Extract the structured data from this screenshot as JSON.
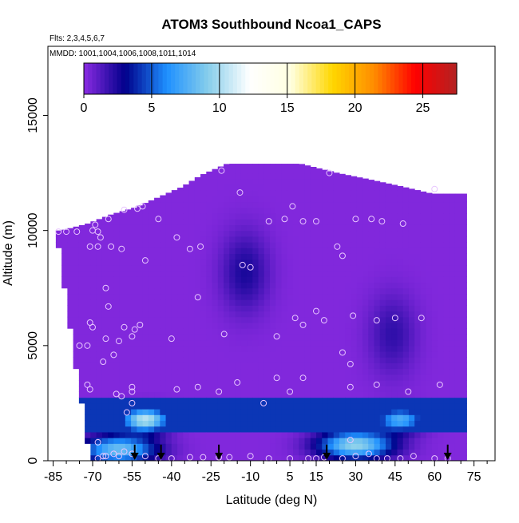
{
  "chart_data": {
    "type": "heatmap",
    "title": "ATOM3 Southbound Ncoa1_CAPS",
    "subtitle_flights": "Flts: 2,3,4,5,6,7",
    "subtitle_dates": "MMDD: 1001,1004,1006,1008,1011,1014",
    "xlabel": "Latitude (deg N)",
    "ylabel": "Altitude (m)",
    "xlim": [
      -87,
      83
    ],
    "ylim": [
      0,
      18000
    ],
    "x_ticks": [
      -85,
      -70,
      -55,
      -40,
      -25,
      -10,
      5,
      15,
      30,
      45,
      60,
      75
    ],
    "y_ticks": [
      0,
      5000,
      10000,
      15000
    ],
    "colorbar": {
      "range": [
        0,
        27.5
      ],
      "ticks": [
        0,
        5,
        10,
        15,
        20,
        25
      ],
      "colors": [
        "#8a2be2",
        "#00008b",
        "#1e90ff",
        "#87ceeb",
        "#ffffff",
        "#ffffe0",
        "#ffd700",
        "#ff8c00",
        "#ff0000",
        "#b22222"
      ],
      "segment_edges": [
        0,
        5,
        10,
        15,
        20,
        25
      ]
    },
    "field_base_value": 0.2,
    "field_features": [
      {
        "name": "upper-troposphere-enhancement",
        "lat": -12,
        "alt": 8200,
        "value": 2.5
      },
      {
        "name": "southern-boundary-layer",
        "lat": -60,
        "alt": 500,
        "value": 8.5
      },
      {
        "name": "southern-low-layer",
        "lat": -50,
        "alt": 1800,
        "value": 10.5
      },
      {
        "name": "northern-boundary-layer",
        "lat": 30,
        "alt": 700,
        "value": 9.5
      },
      {
        "name": "northern-low-layer",
        "lat": 47,
        "alt": 1800,
        "value": 7.5
      },
      {
        "name": "northern-mid-troposphere",
        "lat": 44,
        "alt": 5500,
        "value": 2.0
      }
    ],
    "sample_points": [
      [
        -83,
        9950
      ],
      [
        -80,
        9950
      ],
      [
        -76,
        9950
      ],
      [
        -70,
        10000
      ],
      [
        -69,
        10250
      ],
      [
        -68,
        9950
      ],
      [
        -67,
        9700
      ],
      [
        -71,
        9300
      ],
      [
        -68,
        9300
      ],
      [
        -64,
        10500
      ],
      [
        -63,
        9300
      ],
      [
        -59,
        9200
      ],
      [
        -58,
        10900
      ],
      [
        -53,
        10950
      ],
      [
        -51,
        11050
      ],
      [
        -50,
        8700
      ],
      [
        -45,
        10500
      ],
      [
        -38,
        9700
      ],
      [
        -33,
        9200
      ],
      [
        -29,
        9300
      ],
      [
        -21,
        12600
      ],
      [
        -14,
        11650
      ],
      [
        -13,
        8500
      ],
      [
        -10,
        8400
      ],
      [
        -3,
        10400
      ],
      [
        3,
        10500
      ],
      [
        6,
        11050
      ],
      [
        10,
        10400
      ],
      [
        15,
        10400
      ],
      [
        20,
        12500
      ],
      [
        23,
        9300
      ],
      [
        25,
        8900
      ],
      [
        30,
        10500
      ],
      [
        36,
        10500
      ],
      [
        40,
        10400
      ],
      [
        48,
        10300
      ],
      [
        60,
        11800
      ],
      [
        -65,
        7500
      ],
      [
        -64,
        6700
      ],
      [
        -71,
        6000
      ],
      [
        -70,
        5800
      ],
      [
        -65,
        5300
      ],
      [
        -66,
        4300
      ],
      [
        -62,
        4600
      ],
      [
        -60,
        5200
      ],
      [
        -58,
        5800
      ],
      [
        -54,
        5700
      ],
      [
        -52,
        5900
      ],
      [
        -55,
        5400
      ],
      [
        -75,
        5000
      ],
      [
        -72,
        5000
      ],
      [
        -40,
        5300
      ],
      [
        -30,
        7100
      ],
      [
        -20,
        5500
      ],
      [
        0,
        5400
      ],
      [
        7,
        6200
      ],
      [
        10,
        5900
      ],
      [
        15,
        6500
      ],
      [
        18,
        6100
      ],
      [
        25,
        4700
      ],
      [
        28,
        4200
      ],
      [
        29,
        6300
      ],
      [
        38,
        6100
      ],
      [
        45,
        6200
      ],
      [
        55,
        6200
      ],
      [
        -72,
        3300
      ],
      [
        -71,
        3100
      ],
      [
        -61,
        2900
      ],
      [
        -59,
        2800
      ],
      [
        -55,
        3200
      ],
      [
        -55,
        3000
      ],
      [
        -38,
        3100
      ],
      [
        -30,
        3200
      ],
      [
        -22,
        3000
      ],
      [
        -15,
        3400
      ],
      [
        -5,
        2500
      ],
      [
        0,
        3600
      ],
      [
        5,
        3000
      ],
      [
        10,
        3600
      ],
      [
        28,
        3200
      ],
      [
        38,
        3300
      ],
      [
        50,
        3000
      ],
      [
        62,
        3300
      ],
      [
        -55,
        2500
      ],
      [
        -57,
        2100
      ],
      [
        -62,
        300
      ],
      [
        -66,
        200
      ],
      [
        -68,
        100
      ],
      [
        -65,
        200
      ],
      [
        -60,
        200
      ],
      [
        -58,
        400
      ],
      [
        -55,
        300
      ],
      [
        -50,
        200
      ],
      [
        -45,
        100
      ],
      [
        -40,
        100
      ],
      [
        -33,
        150
      ],
      [
        -28,
        150
      ],
      [
        -22,
        150
      ],
      [
        -18,
        150
      ],
      [
        -10,
        200
      ],
      [
        -3,
        100
      ],
      [
        5,
        100
      ],
      [
        12,
        100
      ],
      [
        15,
        100
      ],
      [
        18,
        150
      ],
      [
        25,
        100
      ],
      [
        30,
        200
      ],
      [
        35,
        300
      ],
      [
        38,
        100
      ],
      [
        42,
        100
      ],
      [
        47,
        100
      ],
      [
        52,
        200
      ],
      [
        60,
        100
      ],
      [
        65,
        100
      ],
      [
        -68,
        800
      ],
      [
        28,
        900
      ]
    ],
    "arrows_lat": [
      -54,
      -44,
      -22,
      19,
      65
    ]
  }
}
